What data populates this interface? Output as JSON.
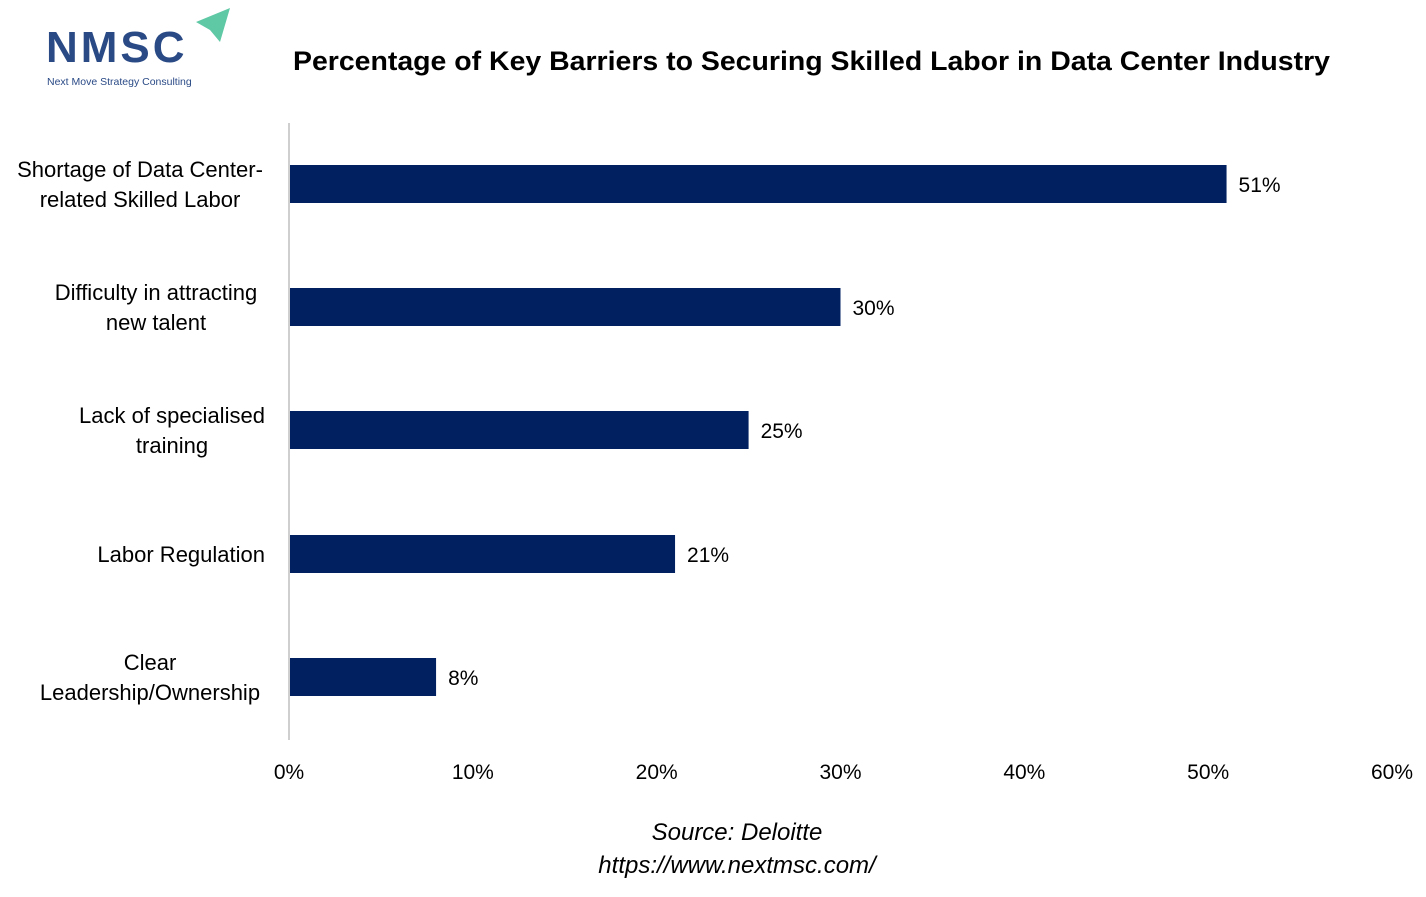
{
  "logo": {
    "text": "NMSC",
    "tagline": "Next Move Strategy Consulting"
  },
  "chart_data": {
    "type": "bar",
    "orientation": "horizontal",
    "title": "Percentage of Key Barriers to Securing Skilled Labor in Data Center Industry",
    "categories": [
      [
        "Shortage of Data Center-",
        "related Skilled Labor"
      ],
      [
        "Difficulty in attracting",
        "new talent"
      ],
      [
        "Lack of specialised",
        "training"
      ],
      [
        "Labor Regulation"
      ],
      [
        "Clear",
        "Leadership/Ownership"
      ]
    ],
    "values": [
      51,
      30,
      25,
      21,
      8
    ],
    "data_labels": [
      "51%",
      "30%",
      "25%",
      "21%",
      "8%"
    ],
    "xlim": [
      0,
      60
    ],
    "xticks": [
      0,
      10,
      20,
      30,
      40,
      50,
      60
    ],
    "xtick_labels": [
      "0%",
      "10%",
      "20%",
      "30%",
      "40%",
      "50%",
      "60%"
    ],
    "xlabel": "",
    "ylabel": "",
    "grid": false,
    "bar_color": "#002060"
  },
  "source": {
    "line1": "Source: Deloitte",
    "line2": "https://www.nextmsc.com/"
  }
}
